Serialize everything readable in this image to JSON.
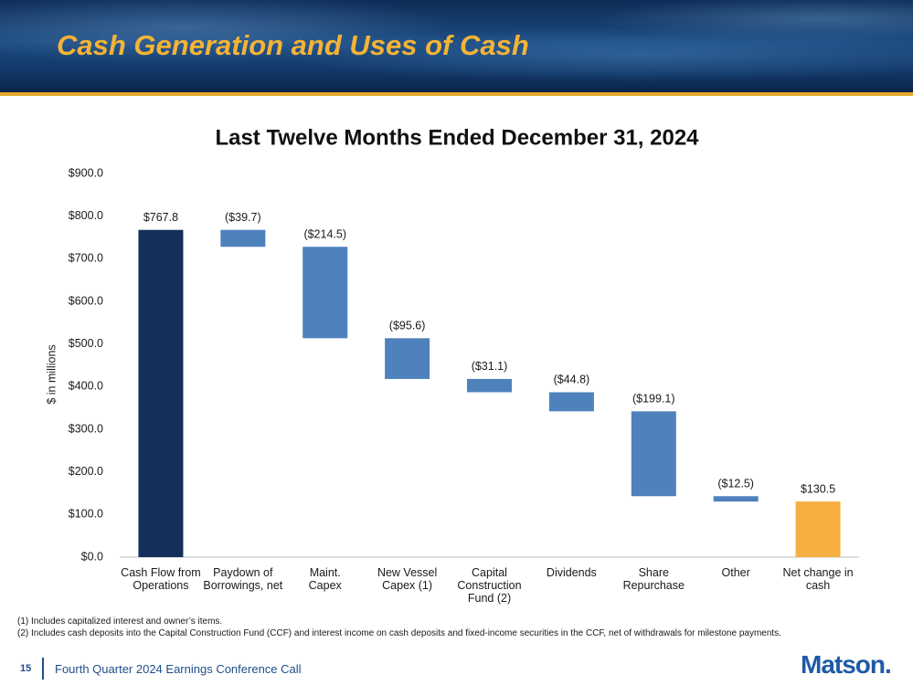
{
  "header": {
    "title": "Cash Generation and Uses of Cash"
  },
  "chart_data": {
    "type": "waterfall",
    "title": "Last Twelve Months Ended December 31, 2024",
    "y_label": "$ in millions",
    "categories": [
      "Cash Flow from\nOperations",
      "Paydown of\nBorrowings, net",
      "Maint.\nCapex",
      "New Vessel\nCapex (1)",
      "Capital\nConstruction\nFund (2)",
      "Dividends",
      "Share\nRepurchase",
      "Other",
      "Net change in\ncash"
    ],
    "values": [
      767.8,
      -39.7,
      -214.5,
      -95.6,
      -31.1,
      -44.8,
      -199.1,
      -12.5,
      130.5
    ],
    "value_labels": [
      "$767.8",
      "($39.7)",
      "($214.5)",
      "($95.6)",
      "($31.1)",
      "($44.8)",
      "($199.1)",
      "($12.5)",
      "$130.5"
    ],
    "measures": [
      "absolute",
      "relative",
      "relative",
      "relative",
      "relative",
      "relative",
      "relative",
      "relative",
      "total"
    ],
    "colors": [
      "#14305a",
      "#4f81bd",
      "#4f81bd",
      "#4f81bd",
      "#4f81bd",
      "#4f81bd",
      "#4f81bd",
      "#4f81bd",
      "#f5b041"
    ],
    "ylim": [
      0,
      900
    ],
    "yticks": [
      {
        "value": 0,
        "label": "$0.0"
      },
      {
        "value": 100,
        "label": "$100.0"
      },
      {
        "value": 200,
        "label": "$200.0"
      },
      {
        "value": 300,
        "label": "$300.0"
      },
      {
        "value": 400,
        "label": "$400.0"
      },
      {
        "value": 500,
        "label": "$500.0"
      },
      {
        "value": 600,
        "label": "$600.0"
      },
      {
        "value": 700,
        "label": "$700.0"
      },
      {
        "value": 800,
        "label": "$800.0"
      },
      {
        "value": 900,
        "label": "$900.0"
      }
    ],
    "grid": false
  },
  "footnotes": [
    "(1)  Includes capitalized interest and owner’s items.",
    "(2)  Includes cash deposits into the Capital Construction Fund (CCF) and interest income on cash deposits and fixed-income securities in the CCF, net of withdrawals for milestone payments."
  ],
  "footer": {
    "page": "15",
    "text": "Fourth Quarter 2024 Earnings Conference Call",
    "logo": "Matson."
  }
}
